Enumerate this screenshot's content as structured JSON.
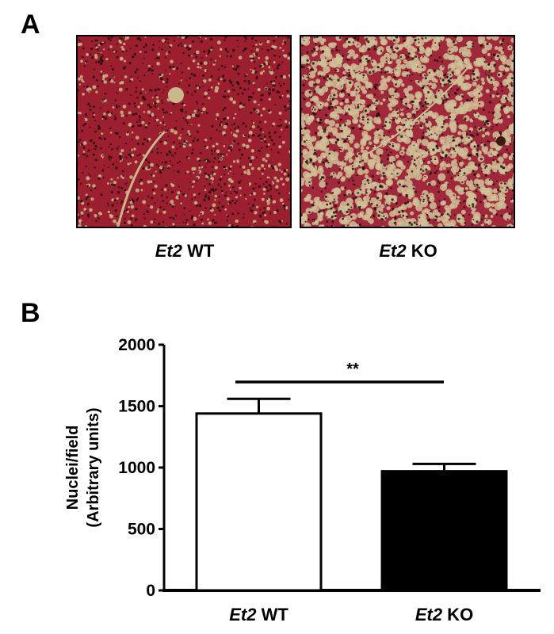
{
  "panels": {
    "a_label": "A",
    "b_label": "B"
  },
  "images": [
    {
      "gene": "Et2",
      "genotype": "WT",
      "tissue_color": "#9b1f2f",
      "vacuole_color": "#c9b98a",
      "nuclei_color": "#1a0a0c"
    },
    {
      "gene": "Et2",
      "genotype": "KO",
      "tissue_color": "#a0283a",
      "vacuole_color": "#cfc097",
      "nuclei_color": "#1a0a0c"
    }
  ],
  "chart_data": {
    "type": "bar",
    "categories": [
      {
        "gene": "Et2",
        "genotype": "WT"
      },
      {
        "gene": "Et2",
        "genotype": "KO"
      }
    ],
    "values": [
      1440,
      970
    ],
    "error_upper": [
      1560,
      1030
    ],
    "bar_colors": [
      "#ffffff",
      "#000000"
    ],
    "ylabel_line1": "Nuclei/field",
    "ylabel_line2": "(Arbitrary units)",
    "ylim": [
      0,
      2000
    ],
    "yticks": [
      "0",
      "500",
      "1000",
      "1500",
      "2000"
    ],
    "significance": "**",
    "grid": false
  }
}
